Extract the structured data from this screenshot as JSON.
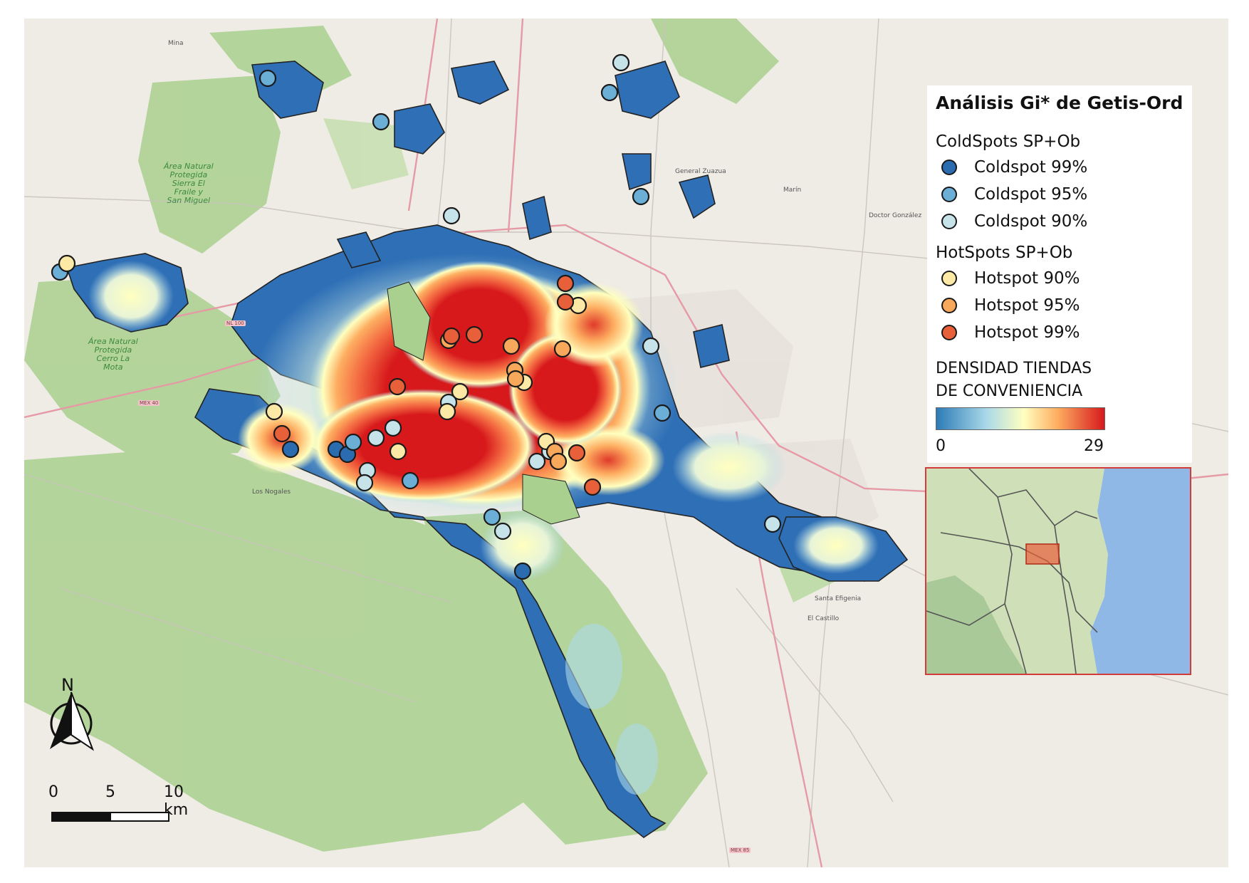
{
  "legend": {
    "title": "Análisis Gi* de Getis-Ord",
    "coldspots_title": "ColdSpots SP+Ob",
    "coldspots": [
      {
        "label": "Coldspot 99%",
        "color": "#2b6cb0"
      },
      {
        "label": "Coldspot 95%",
        "color": "#6baed6"
      },
      {
        "label": "Coldspot 90%",
        "color": "#c6e3ea"
      }
    ],
    "hotspots_title": "HotSpots SP+Ob",
    "hotspots": [
      {
        "label": "Hotspot 90%",
        "color": "#fde9a6"
      },
      {
        "label": "Hotspot 95%",
        "color": "#f7a85a"
      },
      {
        "label": "Hotspot 99%",
        "color": "#e8603a"
      }
    ],
    "density_title_line1": "DENSIDAD TIENDAS",
    "density_title_line2": "DE CONVENIENCIA",
    "density_min": "0",
    "density_max": "29",
    "density_colors": [
      "#2c7bb6",
      "#abd9e9",
      "#ffffbf",
      "#fdae61",
      "#d7191c"
    ]
  },
  "north_arrow": {
    "label": "N"
  },
  "scale_bar": {
    "labels": [
      "0",
      "5",
      "10 km"
    ]
  },
  "basemap_labels": {
    "protected_1": "Área Natural\nProtegida\nSierra El\nFraile y\nSan Miguel",
    "protected_2": "Área Natural\nProtegida\nCerro La\nMota",
    "mina": "Mina",
    "marin": "Marín",
    "dr_gonzalez": "Doctor González",
    "general_zuazua": "General Zuazua",
    "el_carmen": "Los Nogales",
    "santa_efigenia": "Santa Efigenia",
    "el_castillo": "El Castillo",
    "hw_mex40": "MEX 40",
    "hw_mex85": "MEX 85",
    "hw_nl100": "NL 100"
  }
}
